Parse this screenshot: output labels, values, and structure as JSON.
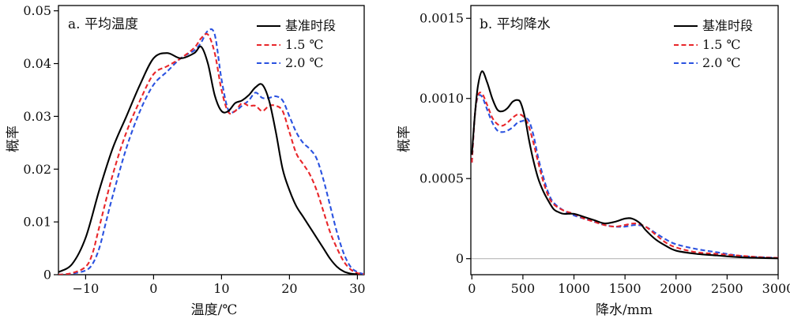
{
  "chart_data": [
    {
      "type": "line",
      "title": "a. 平均温度",
      "xlabel": "温度/℃",
      "ylabel": "概率",
      "xlim": [
        -14,
        31
      ],
      "ylim": [
        0,
        0.051
      ],
      "xticks": [
        -10,
        0,
        10,
        20,
        30
      ],
      "xtick_labels": [
        "−10",
        "0",
        "10",
        "20",
        "30"
      ],
      "yticks": [
        0,
        0.01,
        0.02,
        0.03,
        0.04,
        0.05
      ],
      "ytick_labels": [
        "0",
        "0.01",
        "0.02",
        "0.03",
        "0.04",
        "0.05"
      ],
      "legend_position": "top-right",
      "series": [
        {
          "name": "基准时段",
          "color": "#000000",
          "style": "solid",
          "x": [
            -14,
            -12,
            -10,
            -8,
            -6,
            -4,
            -2,
            0,
            2,
            4,
            6,
            7,
            8,
            9,
            10,
            11,
            12,
            13,
            14,
            15,
            16,
            17,
            18,
            19,
            20,
            21,
            22,
            23,
            24,
            25,
            26,
            27,
            28,
            29,
            30
          ],
          "y": [
            0.0005,
            0.002,
            0.007,
            0.016,
            0.024,
            0.03,
            0.036,
            0.041,
            0.042,
            0.041,
            0.042,
            0.0432,
            0.04,
            0.034,
            0.031,
            0.031,
            0.0325,
            0.033,
            0.034,
            0.0355,
            0.036,
            0.033,
            0.027,
            0.02,
            0.016,
            0.013,
            0.011,
            0.009,
            0.007,
            0.005,
            0.003,
            0.0015,
            0.0006,
            0.0002,
            0.0001
          ]
        },
        {
          "name": "1.5 ℃",
          "color": "#e8262a",
          "style": "dashed",
          "x": [
            -14,
            -12,
            -10,
            -9,
            -8,
            -6,
            -4,
            -2,
            0,
            2,
            4,
            6,
            7,
            8,
            9,
            10,
            11,
            12,
            13,
            14,
            15,
            16,
            17,
            18,
            19,
            20,
            21,
            22,
            23,
            24,
            25,
            26,
            27,
            28,
            29,
            30,
            31
          ],
          "y": [
            0,
            0.0003,
            0.0015,
            0.004,
            0.009,
            0.019,
            0.027,
            0.033,
            0.038,
            0.0395,
            0.041,
            0.043,
            0.0448,
            0.0455,
            0.042,
            0.035,
            0.0308,
            0.031,
            0.0325,
            0.032,
            0.032,
            0.031,
            0.032,
            0.032,
            0.031,
            0.027,
            0.023,
            0.021,
            0.019,
            0.016,
            0.012,
            0.008,
            0.005,
            0.0025,
            0.001,
            0.0003,
            0.0001
          ]
        },
        {
          "name": "2.0 ℃",
          "color": "#2a52e0",
          "style": "dashed",
          "x": [
            -14,
            -12,
            -10,
            -9,
            -8,
            -7,
            -6,
            -4,
            -2,
            0,
            2,
            4,
            6,
            7,
            8,
            9,
            10,
            11,
            12,
            13,
            14,
            15,
            16,
            17,
            18,
            19,
            20,
            21,
            22,
            23,
            24,
            25,
            26,
            27,
            28,
            29,
            30,
            31
          ],
          "y": [
            0,
            0.0002,
            0.0008,
            0.002,
            0.005,
            0.01,
            0.015,
            0.024,
            0.031,
            0.036,
            0.0385,
            0.041,
            0.0425,
            0.044,
            0.0462,
            0.0455,
            0.037,
            0.0312,
            0.031,
            0.032,
            0.033,
            0.0345,
            0.0335,
            0.0335,
            0.0338,
            0.033,
            0.03,
            0.027,
            0.025,
            0.0238,
            0.022,
            0.018,
            0.013,
            0.008,
            0.004,
            0.0015,
            0.0005,
            0.0001
          ]
        }
      ]
    },
    {
      "type": "line",
      "title": "b. 平均降水",
      "xlabel": "降水/mm",
      "ylabel": "概率",
      "xlim": [
        -10,
        3000
      ],
      "ylim": [
        -0.0001,
        0.00158
      ],
      "xticks": [
        0,
        500,
        1000,
        1500,
        2000,
        2500,
        3000
      ],
      "xtick_labels": [
        "0",
        "500",
        "1000",
        "1500",
        "2000",
        "2500",
        "3000"
      ],
      "yticks": [
        0,
        0.0005,
        0.001,
        0.0015
      ],
      "ytick_labels": [
        "0",
        "0.0005",
        "0.0010",
        "0.0015"
      ],
      "legend_position": "top-right",
      "series": [
        {
          "name": "基准时段",
          "color": "#000000",
          "style": "solid",
          "x": [
            0,
            30,
            60,
            100,
            150,
            200,
            250,
            300,
            350,
            400,
            450,
            480,
            520,
            560,
            600,
            650,
            700,
            750,
            800,
            850,
            900,
            1000,
            1100,
            1200,
            1300,
            1400,
            1500,
            1570,
            1650,
            1700,
            1800,
            1900,
            2000,
            2200,
            2400,
            2600,
            2800,
            3000
          ],
          "y": [
            0.00065,
            0.0009,
            0.00108,
            0.00117,
            0.0011,
            0.001,
            0.00093,
            0.00092,
            0.00094,
            0.00098,
            0.00099,
            0.00097,
            0.00088,
            0.00074,
            0.00062,
            0.0005,
            0.00042,
            0.00036,
            0.00031,
            0.00029,
            0.00028,
            0.00028,
            0.00026,
            0.00024,
            0.00022,
            0.00023,
            0.00025,
            0.00025,
            0.00022,
            0.00018,
            0.00012,
            8e-05,
            5e-05,
            3e-05,
            2e-05,
            1e-05,
            5e-06,
            2e-06
          ]
        },
        {
          "name": "1.5 ℃",
          "color": "#e8262a",
          "style": "dashed",
          "x": [
            0,
            30,
            60,
            100,
            150,
            200,
            250,
            300,
            350,
            400,
            450,
            500,
            550,
            600,
            650,
            700,
            750,
            800,
            900,
            1000,
            1100,
            1200,
            1300,
            1400,
            1500,
            1600,
            1700,
            1800,
            1900,
            2000,
            2200,
            2400,
            2600,
            2800,
            3000
          ],
          "y": [
            0.0006,
            0.0009,
            0.00102,
            0.00103,
            0.00096,
            0.00088,
            0.00084,
            0.00083,
            0.00085,
            0.00088,
            0.0009,
            0.00089,
            0.00084,
            0.00073,
            0.0006,
            0.00048,
            0.00039,
            0.00034,
            0.0003,
            0.00028,
            0.00025,
            0.00023,
            0.00021,
            0.0002,
            0.00021,
            0.00022,
            0.0002,
            0.00015,
            0.0001,
            7e-05,
            4e-05,
            3e-05,
            2e-05,
            1e-05,
            5e-06
          ]
        },
        {
          "name": "2.0 ℃",
          "color": "#2a52e0",
          "style": "dashed",
          "x": [
            0,
            30,
            60,
            100,
            150,
            200,
            250,
            300,
            350,
            400,
            450,
            500,
            550,
            600,
            650,
            700,
            750,
            800,
            900,
            1000,
            1100,
            1200,
            1300,
            1400,
            1500,
            1600,
            1700,
            1800,
            1900,
            2000,
            2200,
            2400,
            2600,
            2800,
            3000
          ],
          "y": [
            0.0006,
            0.0009,
            0.00101,
            0.00101,
            0.00093,
            0.00085,
            0.0008,
            0.00079,
            0.0008,
            0.00082,
            0.00085,
            0.00086,
            0.00087,
            0.00078,
            0.00063,
            0.00051,
            0.00041,
            0.00035,
            0.0003,
            0.00027,
            0.00025,
            0.00023,
            0.00021,
            0.0002,
            0.0002,
            0.00021,
            0.0002,
            0.00016,
            0.00012,
            9e-05,
            6e-05,
            4e-05,
            2e-05,
            1e-05,
            5e-06
          ]
        }
      ]
    }
  ]
}
